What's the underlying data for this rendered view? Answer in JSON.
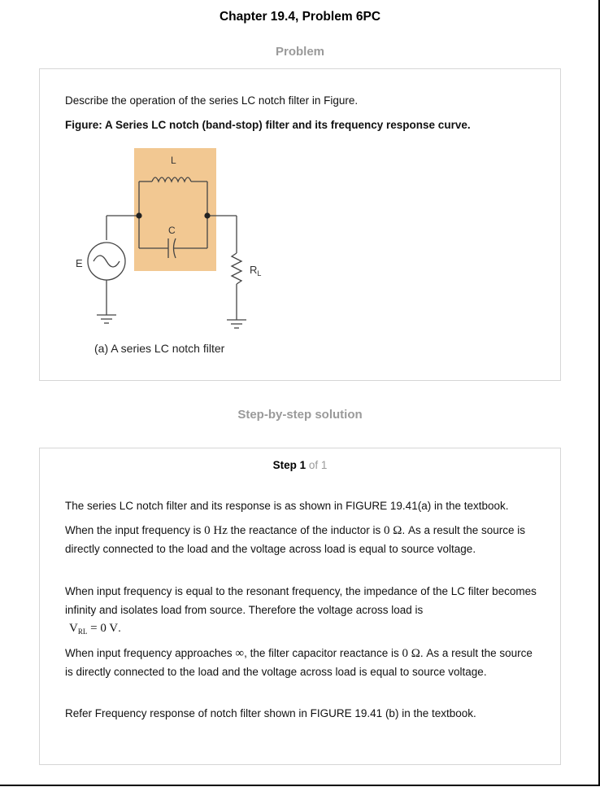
{
  "header": {
    "title": "Chapter 19.4, Problem 6PC"
  },
  "problem": {
    "heading": "Problem",
    "description": "Describe the operation of the series LC notch filter in Figure.",
    "figure_title": "Figure: A Series LC notch (band-stop) filter and its frequency response curve.",
    "figure": {
      "label_L": "L",
      "label_C": "C",
      "label_E": "E",
      "label_R": "R",
      "label_R_sub": "L",
      "caption": "(a) A series LC notch filter"
    }
  },
  "solution": {
    "heading": "Step-by-step solution",
    "step_word": "Step 1",
    "step_of": "of 1",
    "p1": "The series LC notch filter and its response is as shown in FIGURE 19.41(a) in the textbook.",
    "p2_a": "When the input frequency is",
    "p2_math1": "0 Hz",
    "p2_b": "the reactance of the inductor is",
    "p2_math2": "0 Ω",
    "p2_c": ". As a result the source is directly connected to the load and the voltage across load is equal to source voltage.",
    "p3_a": "When input frequency is equal to the resonant frequency, the impedance of the LC filter becomes infinity and isolates load from source. Therefore the voltage across load is",
    "p3_math_V": "V",
    "p3_math_sub": "RL",
    "p3_math_rest": " = 0 V",
    "p3_end": ".",
    "p4_a": "When input frequency approaches",
    "p4_inf": "∞",
    "p4_b": ", the filter capacitor reactance is",
    "p4_math": "0 Ω",
    "p4_c": ". As a result the source is directly connected to the load and the voltage across load is equal to source voltage.",
    "p5": "Refer Frequency response of notch filter shown in FIGURE 19.41 (b) in the textbook."
  }
}
